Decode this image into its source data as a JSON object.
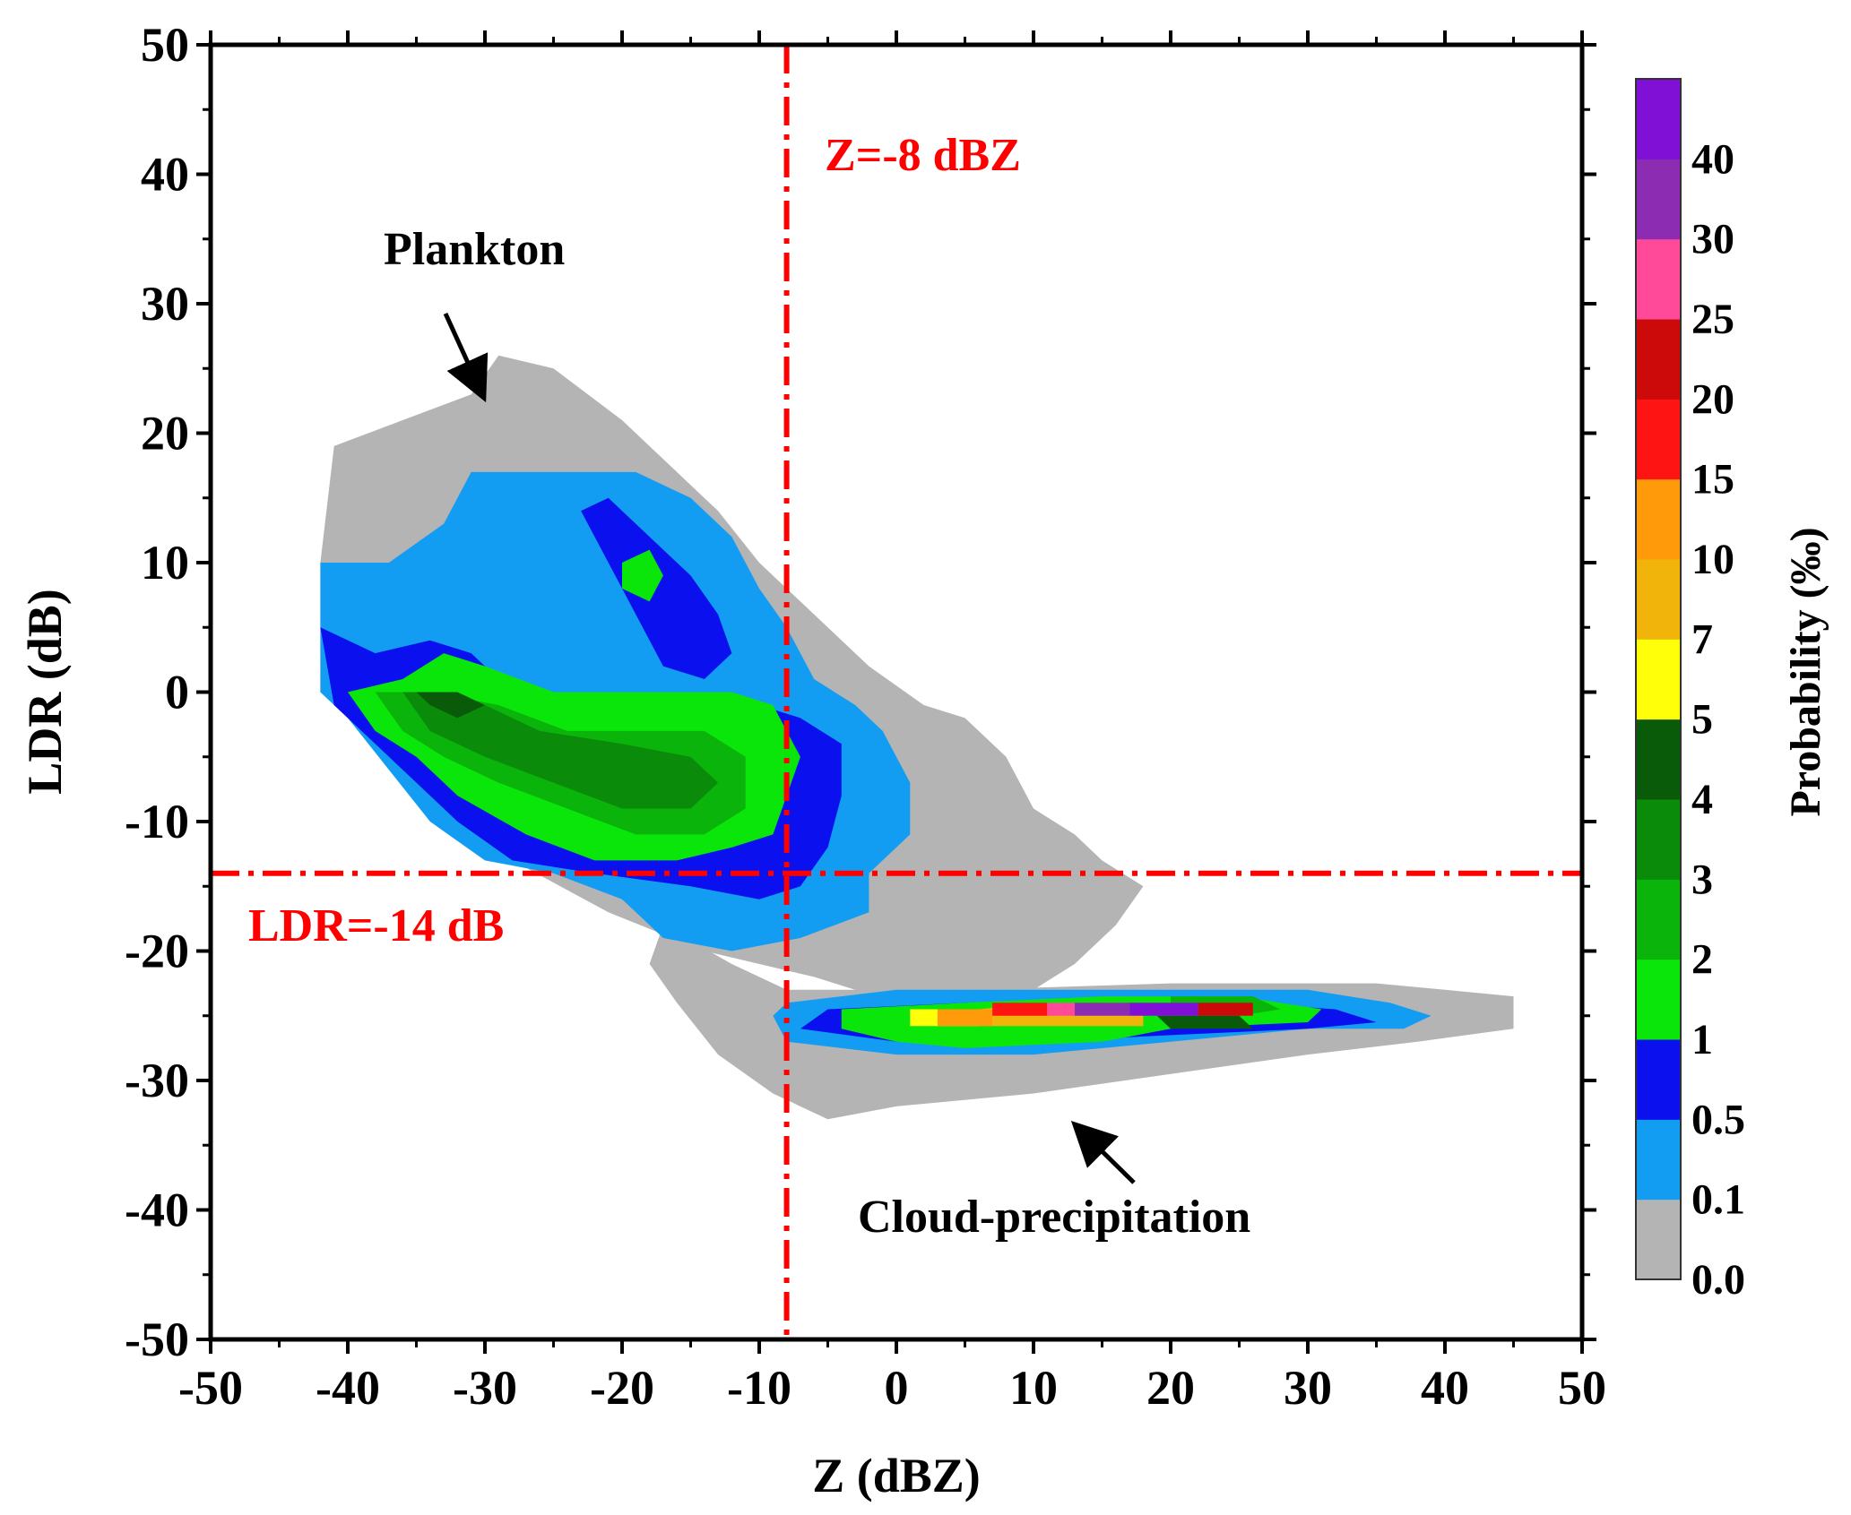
{
  "chart_data": {
    "type": "heatmap",
    "title": "",
    "xlabel": "Z (dBZ)",
    "ylabel": "LDR (dB)",
    "xlim": [
      -50,
      50
    ],
    "ylim": [
      -50,
      50
    ],
    "x_ticks": [
      "-50",
      "-40",
      "-30",
      "-20",
      "-10",
      "0",
      "10",
      "20",
      "30",
      "40",
      "50"
    ],
    "y_ticks": [
      "-50",
      "-40",
      "-30",
      "-20",
      "-10",
      "0",
      "10",
      "20",
      "30",
      "40",
      "50"
    ],
    "grid": false,
    "colorbar": {
      "label": "Probability (‰)",
      "tick_labels": [
        "0.0",
        "0.1",
        "0.5",
        "1",
        "2",
        "3",
        "4",
        "5",
        "7",
        "10",
        "15",
        "20",
        "25",
        "30",
        "40"
      ],
      "colors": [
        "#b4b4b4",
        "#139df2",
        "#0a10ee",
        "#0ae60a",
        "#0ab40a",
        "#0a8c0a",
        "#095a09",
        "#ffff0a",
        "#f0b40a",
        "#ff9a0a",
        "#ff1414",
        "#cc0a0a",
        "#ff4a9a",
        "#8c2cb2",
        "#8010d6"
      ]
    },
    "threshold_lines": [
      {
        "orientation": "vertical",
        "value": -8,
        "label": "Z=-8 dBZ",
        "color": "#ff0000"
      },
      {
        "orientation": "horizontal",
        "value": -14,
        "label": "LDR=-14 dB",
        "color": "#ff0000"
      }
    ],
    "annotations": [
      {
        "text": "Plankton",
        "points_to": [
          -30,
          22
        ]
      },
      {
        "text": "Cloud-precipitation",
        "points_to": [
          13,
          -31
        ]
      }
    ],
    "regions": [
      {
        "name": "plankton_gray",
        "color_index": 0,
        "polygon": [
          [
            -41,
            19
          ],
          [
            -36,
            21
          ],
          [
            -31,
            23
          ],
          [
            -29,
            26
          ],
          [
            -25,
            25
          ],
          [
            -20,
            21
          ],
          [
            -16,
            17
          ],
          [
            -13,
            14
          ],
          [
            -10,
            10
          ],
          [
            -8,
            8
          ],
          [
            -5,
            5
          ],
          [
            -2,
            2
          ],
          [
            2,
            -1
          ],
          [
            5,
            -2
          ],
          [
            8,
            -5
          ],
          [
            10,
            -9
          ],
          [
            13,
            -11
          ],
          [
            15,
            -13
          ],
          [
            18,
            -15
          ],
          [
            16,
            -18
          ],
          [
            13,
            -21
          ],
          [
            10,
            -23
          ],
          [
            5,
            -24
          ],
          [
            0,
            -24
          ],
          [
            -6,
            -22
          ],
          [
            -14,
            -20
          ],
          [
            -21,
            -17
          ],
          [
            -28,
            -13
          ],
          [
            -33,
            -9
          ],
          [
            -38,
            -4
          ],
          [
            -42,
            0
          ],
          [
            -42,
            10
          ]
        ]
      },
      {
        "name": "cloud_gray",
        "color_index": 0,
        "polygon": [
          [
            -17,
            -18
          ],
          [
            -12,
            -21
          ],
          [
            -8,
            -23
          ],
          [
            5,
            -23
          ],
          [
            20,
            -22.5
          ],
          [
            35,
            -22.5
          ],
          [
            40,
            -23
          ],
          [
            45,
            -23.5
          ],
          [
            45,
            -26
          ],
          [
            38,
            -27
          ],
          [
            30,
            -28
          ],
          [
            20,
            -29.5
          ],
          [
            10,
            -31
          ],
          [
            0,
            -32
          ],
          [
            -5,
            -33
          ],
          [
            -9,
            -31
          ],
          [
            -13,
            -28
          ],
          [
            -16,
            -24
          ],
          [
            -18,
            -21
          ]
        ]
      },
      {
        "name": "plankton_light_blue",
        "color_index": 1,
        "polygon": [
          [
            -42,
            10
          ],
          [
            -37,
            10
          ],
          [
            -33,
            13
          ],
          [
            -31,
            17
          ],
          [
            -24,
            17
          ],
          [
            -19,
            17
          ],
          [
            -15,
            15
          ],
          [
            -12,
            12
          ],
          [
            -10,
            8
          ],
          [
            -8,
            5
          ],
          [
            -6,
            1
          ],
          [
            -3,
            -1
          ],
          [
            -1,
            -3
          ],
          [
            1,
            -7
          ],
          [
            1,
            -11
          ],
          [
            -2,
            -14
          ],
          [
            -2,
            -17
          ],
          [
            -7,
            -19
          ],
          [
            -12,
            -20
          ],
          [
            -17,
            -19
          ],
          [
            -20,
            -16
          ],
          [
            -25,
            -14
          ],
          [
            -30,
            -13
          ],
          [
            -34,
            -10
          ],
          [
            -37,
            -6
          ],
          [
            -40,
            -2
          ],
          [
            -42,
            0
          ]
        ]
      },
      {
        "name": "plankton_blue",
        "color_index": 2,
        "polygon": [
          [
            -42,
            5
          ],
          [
            -38,
            3
          ],
          [
            -34,
            4
          ],
          [
            -31,
            3
          ],
          [
            -29,
            1
          ],
          [
            -26,
            0
          ],
          [
            -20,
            0
          ],
          [
            -14,
            0
          ],
          [
            -10,
            -1
          ],
          [
            -7,
            -2
          ],
          [
            -4,
            -4
          ],
          [
            -4,
            -8
          ],
          [
            -5,
            -12
          ],
          [
            -7,
            -15
          ],
          [
            -10,
            -16
          ],
          [
            -15,
            -15
          ],
          [
            -22,
            -14
          ],
          [
            -28,
            -13
          ],
          [
            -32,
            -10
          ],
          [
            -35,
            -7
          ],
          [
            -38,
            -4
          ],
          [
            -41,
            -1
          ]
        ]
      },
      {
        "name": "plankton_blue_branch",
        "color_index": 2,
        "polygon": [
          [
            -23,
            14
          ],
          [
            -21,
            15
          ],
          [
            -18,
            12
          ],
          [
            -15,
            9
          ],
          [
            -13,
            6
          ],
          [
            -12,
            3
          ],
          [
            -14,
            1
          ],
          [
            -17,
            2
          ],
          [
            -19,
            6
          ],
          [
            -21,
            10
          ]
        ]
      },
      {
        "name": "plankton_green",
        "color_index": 3,
        "polygon": [
          [
            -40,
            0
          ],
          [
            -36,
            1
          ],
          [
            -33,
            3
          ],
          [
            -30,
            2
          ],
          [
            -25,
            0
          ],
          [
            -18,
            0
          ],
          [
            -12,
            0
          ],
          [
            -9,
            -1
          ],
          [
            -8,
            -3
          ],
          [
            -7,
            -5
          ],
          [
            -8,
            -8
          ],
          [
            -9,
            -11
          ],
          [
            -12,
            -12
          ],
          [
            -16,
            -13
          ],
          [
            -22,
            -13
          ],
          [
            -27,
            -11
          ],
          [
            -32,
            -8
          ],
          [
            -35,
            -5
          ],
          [
            -38,
            -3
          ]
        ]
      },
      {
        "name": "plankton_green_spot",
        "color_index": 3,
        "polygon": [
          [
            -20,
            10
          ],
          [
            -18,
            11
          ],
          [
            -17,
            9
          ],
          [
            -18,
            7
          ],
          [
            -20,
            8
          ]
        ]
      },
      {
        "name": "plankton_mid_green",
        "color_index": 4,
        "polygon": [
          [
            -38,
            0
          ],
          [
            -34,
            0
          ],
          [
            -29,
            -1
          ],
          [
            -24,
            -3
          ],
          [
            -19,
            -3
          ],
          [
            -14,
            -3
          ],
          [
            -11,
            -5
          ],
          [
            -11,
            -9
          ],
          [
            -14,
            -11
          ],
          [
            -19,
            -11
          ],
          [
            -24,
            -9
          ],
          [
            -29,
            -7
          ],
          [
            -33,
            -5
          ],
          [
            -36,
            -3
          ]
        ]
      },
      {
        "name": "plankton_dark_green",
        "color_index": 5,
        "polygon": [
          [
            -36,
            0
          ],
          [
            -33,
            0
          ],
          [
            -30,
            -1
          ],
          [
            -26,
            -3
          ],
          [
            -20,
            -4
          ],
          [
            -15,
            -5
          ],
          [
            -13,
            -7
          ],
          [
            -15,
            -9
          ],
          [
            -20,
            -9
          ],
          [
            -25,
            -7
          ],
          [
            -30,
            -5
          ],
          [
            -34,
            -3
          ]
        ]
      },
      {
        "name": "plankton_core",
        "color_index": 6,
        "polygon": [
          [
            -35,
            0
          ],
          [
            -32,
            0
          ],
          [
            -30,
            -1
          ],
          [
            -32,
            -2
          ],
          [
            -34,
            -1
          ]
        ]
      },
      {
        "name": "cloud_light_blue",
        "color_index": 1,
        "polygon": [
          [
            -8,
            -24
          ],
          [
            0,
            -23
          ],
          [
            10,
            -23
          ],
          [
            20,
            -23
          ],
          [
            30,
            -23
          ],
          [
            36,
            -24
          ],
          [
            39,
            -25
          ],
          [
            37,
            -26
          ],
          [
            30,
            -26
          ],
          [
            20,
            -27
          ],
          [
            10,
            -28
          ],
          [
            0,
            -28
          ],
          [
            -8,
            -27
          ],
          [
            -9,
            -25
          ]
        ]
      },
      {
        "name": "cloud_blue",
        "color_index": 2,
        "polygon": [
          [
            -5,
            -24.5
          ],
          [
            5,
            -24
          ],
          [
            15,
            -24
          ],
          [
            25,
            -24
          ],
          [
            32,
            -24.5
          ],
          [
            35,
            -25.5
          ],
          [
            30,
            -26
          ],
          [
            20,
            -26.5
          ],
          [
            10,
            -27
          ],
          [
            0,
            -27
          ],
          [
            -7,
            -26
          ]
        ]
      },
      {
        "name": "cloud_green",
        "color_index": 3,
        "polygon": [
          [
            -4,
            -24.5
          ],
          [
            5,
            -24
          ],
          [
            15,
            -23.5
          ],
          [
            25,
            -23.5
          ],
          [
            31,
            -24.5
          ],
          [
            30,
            -25.5
          ],
          [
            20,
            -26
          ],
          [
            15,
            -27
          ],
          [
            5,
            -27.5
          ],
          [
            0,
            -27
          ],
          [
            -4,
            -26
          ]
        ]
      },
      {
        "name": "cloud_mid_green",
        "color_index": 4,
        "polygon": [
          [
            20,
            -23.5
          ],
          [
            26,
            -23.5
          ],
          [
            28,
            -24.5
          ],
          [
            25,
            -25
          ],
          [
            20,
            -25
          ]
        ]
      },
      {
        "name": "cloud_dark_green",
        "color_index": 6,
        "polygon": [
          [
            19,
            -25
          ],
          [
            25,
            -25
          ],
          [
            26,
            -26
          ],
          [
            20,
            -26
          ]
        ]
      },
      {
        "name": "cloud_yellow",
        "color_index": 7,
        "polygon": [
          [
            1,
            -24.5
          ],
          [
            6,
            -24.5
          ],
          [
            6,
            -25.8
          ],
          [
            1,
            -25.8
          ]
        ]
      },
      {
        "name": "cloud_gold",
        "color_index": 8,
        "polygon": [
          [
            6,
            -24.5
          ],
          [
            9,
            -24.2
          ],
          [
            15,
            -24.2
          ],
          [
            18,
            -24.5
          ],
          [
            18,
            -25.8
          ],
          [
            10,
            -25.8
          ],
          [
            6,
            -25.8
          ]
        ]
      },
      {
        "name": "cloud_orange",
        "color_index": 9,
        "polygon": [
          [
            3,
            -24.5
          ],
          [
            7,
            -24.5
          ],
          [
            7,
            -25.8
          ],
          [
            3,
            -25.8
          ]
        ]
      },
      {
        "name": "cloud_red",
        "color_index": 10,
        "polygon": [
          [
            7,
            -24
          ],
          [
            11,
            -24
          ],
          [
            11,
            -25
          ],
          [
            7,
            -25
          ]
        ]
      },
      {
        "name": "cloud_dark_red",
        "color_index": 11,
        "polygon": [
          [
            22,
            -24
          ],
          [
            26,
            -24
          ],
          [
            26,
            -25
          ],
          [
            22,
            -25
          ]
        ]
      },
      {
        "name": "cloud_pink",
        "color_index": 12,
        "polygon": [
          [
            11,
            -24
          ],
          [
            13,
            -24
          ],
          [
            13,
            -25
          ],
          [
            11,
            -25
          ]
        ]
      },
      {
        "name": "cloud_purple",
        "color_index": 13,
        "polygon": [
          [
            13,
            -24
          ],
          [
            17,
            -24
          ],
          [
            17,
            -25
          ],
          [
            13,
            -25
          ]
        ]
      },
      {
        "name": "cloud_violet",
        "color_index": 14,
        "polygon": [
          [
            17,
            -24
          ],
          [
            22,
            -24
          ],
          [
            22,
            -25
          ],
          [
            17,
            -25
          ]
        ]
      }
    ]
  }
}
